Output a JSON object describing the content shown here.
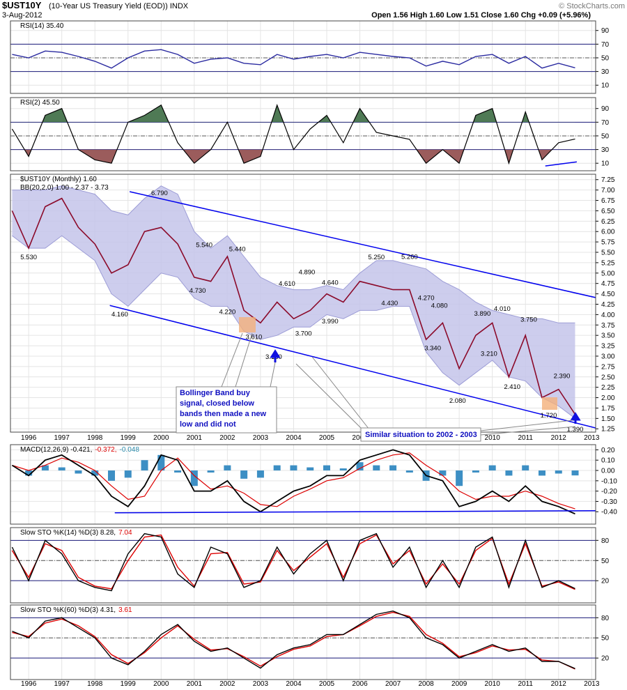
{
  "chart_data": {
    "type": "financial",
    "title": "$UST10Y",
    "subtitle": "(10-Year US Treasury Yield (EOD)) INDX",
    "date": "3-Aug-2012",
    "quote": "Open 1.56 High 1.60 Low 1.51 Close 1.60 Chg +0.09 (+5.96%)",
    "credit": "© StockCharts.com",
    "x": [
      1995.5,
      1996,
      1996.5,
      1997,
      1997.5,
      1998,
      1998.5,
      1999,
      1999.5,
      2000,
      2000.5,
      2001,
      2001.5,
      2002,
      2002.5,
      2003,
      2003.5,
      2004,
      2004.5,
      2005,
      2005.5,
      2006,
      2006.5,
      2007,
      2007.5,
      2008,
      2008.5,
      2009,
      2009.5,
      2010,
      2010.5,
      2011,
      2011.5,
      2012,
      2012.5
    ],
    "xlim": [
      1995.45,
      2013.12
    ],
    "xticks": [
      1996,
      1997,
      1998,
      1999,
      2000,
      2001,
      2002,
      2003,
      2004,
      2005,
      2006,
      2007,
      2008,
      2009,
      2010,
      2011,
      2012,
      2013
    ],
    "grid": true,
    "panels": [
      {
        "type": "line",
        "legend": [
          "RSI(14) 35.40"
        ],
        "legend_colors": [
          "#000000"
        ],
        "ylim": [
          -2,
          104
        ],
        "yticks": [
          90,
          70,
          50,
          30,
          10
        ],
        "ref_lines": [
          70,
          50,
          30
        ],
        "series": [
          {
            "color": "#2a2aa0",
            "values": [
              55,
              50,
              60,
              58,
              52,
              45,
              35,
              50,
              60,
              62,
              55,
              42,
              48,
              50,
              42,
              40,
              55,
              48,
              52,
              55,
              50,
              58,
              55,
              52,
              50,
              38,
              45,
              40,
              52,
              55,
              42,
              52,
              35,
              42,
              35.4
            ]
          }
        ]
      },
      {
        "type": "rsi-fill",
        "legend": [
          "RSI(2) 45.50"
        ],
        "legend_colors": [
          "#000000"
        ],
        "ylim": [
          -1,
          106
        ],
        "yticks": [
          90,
          70,
          50,
          30,
          10
        ],
        "ref_lines": [
          70,
          50,
          30
        ],
        "fills": [
          {
            "above": 70,
            "color": "#4f7a55"
          },
          {
            "below": 30,
            "color": "#9b5c5c"
          }
        ],
        "series": [
          {
            "color": "#000000",
            "values": [
              60,
              20,
              80,
              90,
              30,
              15,
              10,
              70,
              80,
              95,
              40,
              10,
              30,
              70,
              10,
              20,
              95,
              30,
              60,
              80,
              40,
              90,
              55,
              50,
              45,
              10,
              30,
              10,
              80,
              90,
              10,
              85,
              15,
              40,
              45.5
            ]
          }
        ],
        "trendlines": [
          {
            "x": [
              2011.6,
              2012.55
            ],
            "values": [
              6,
              12
            ],
            "color": "#0000ee"
          }
        ]
      },
      {
        "type": "price",
        "legend": [
          "$UST10Y (Monthly) 1.60"
        ],
        "legend_colors": [
          "#000000"
        ],
        "band_legend": "BB(20,2.0) 1.00 - 2.37 - 3.73",
        "ylim": [
          1.17,
          7.38
        ],
        "yticks": [
          7.25,
          {
            "value": 7,
            "label": "7.00"
          },
          6.75,
          {
            "value": 6.5,
            "label": "6.50"
          },
          6.25,
          {
            "value": 6,
            "label": "6.00"
          },
          5.75,
          {
            "value": 5.5,
            "label": "5.50"
          },
          5.25,
          {
            "value": 5,
            "label": "5.00"
          },
          4.75,
          {
            "value": 4.5,
            "label": "4.50"
          },
          4.25,
          {
            "value": 4,
            "label": "4.00"
          },
          3.75,
          {
            "value": 3.5,
            "label": "3.50"
          },
          3.25,
          {
            "value": 3,
            "label": "3.00"
          },
          2.75,
          {
            "value": 2.5,
            "label": "2.50"
          },
          2.25,
          {
            "value": 2,
            "label": "2.00"
          },
          1.75,
          {
            "value": 1.5,
            "label": "1.50"
          },
          1.25
        ],
        "series": [
          {
            "color": "#8b0a2a",
            "values": [
              6.5,
              5.6,
              6.6,
              6.8,
              6.1,
              5.7,
              5.0,
              5.2,
              6.0,
              6.1,
              5.7,
              4.9,
              4.8,
              5.4,
              4.1,
              3.8,
              4.3,
              3.9,
              4.1,
              4.5,
              4.3,
              4.8,
              4.7,
              4.6,
              4.6,
              3.4,
              3.8,
              2.7,
              3.5,
              3.8,
              2.5,
              3.5,
              2.0,
              2.2,
              1.6
            ]
          },
          {
            "color": "#9c9cd6",
            "values": [
              7.0,
              7.0,
              7.0,
              7.1,
              7.0,
              6.9,
              6.5,
              6.4,
              6.8,
              7.1,
              6.9,
              6.0,
              5.6,
              5.9,
              5.4,
              4.9,
              4.7,
              4.6,
              4.6,
              4.7,
              4.6,
              5.0,
              5.3,
              5.3,
              5.2,
              5.1,
              4.8,
              4.6,
              4.3,
              4.1,
              4.0,
              3.9,
              3.9,
              3.8,
              3.8
            ]
          },
          {
            "color": "#9c9cd6",
            "values": [
              5.9,
              5.6,
              5.6,
              5.9,
              5.6,
              5.3,
              4.5,
              4.2,
              4.6,
              5.0,
              4.9,
              4.4,
              4.2,
              4.2,
              3.6,
              3.4,
              3.5,
              3.7,
              3.7,
              4.0,
              3.9,
              4.1,
              4.1,
              4.2,
              4.2,
              3.1,
              2.6,
              2.3,
              2.6,
              2.9,
              2.5,
              2.4,
              2.0,
              1.8,
              1.5
            ]
          }
        ],
        "band_color": "#c4c4ea",
        "peaks": {
          "x": [
            1996.0,
            1999.95,
            1998.75,
            2001.3,
            2001.1,
            2002.3,
            2002.0,
            2002.8,
            2003.4,
            2003.8,
            2004.4,
            2005.1,
            2004.3,
            2005.1,
            2006.5,
            2007.5,
            2006.9,
            2008.0,
            2008.4,
            2008.2,
            2009.7,
            2010.3,
            2009.9,
            2008.95,
            2010.6,
            2011.1,
            2012.1,
            2011.7,
            2012.5
          ],
          "values": [
            5.53,
            6.79,
            4.16,
            5.54,
            4.73,
            5.44,
            4.22,
            3.61,
            3.13,
            4.61,
            4.89,
            4.64,
            3.7,
            3.99,
            5.25,
            5.26,
            4.43,
            4.27,
            4.08,
            3.34,
            3.89,
            4.01,
            3.21,
            2.08,
            2.41,
            3.75,
            2.39,
            1.72,
            1.39
          ],
          "value_labels": [
            "5.530",
            "6.790",
            "4.160",
            "5.540",
            "4.730",
            "5.440",
            "4.220",
            "3.610",
            "3.130",
            "4.610",
            "4.890",
            "4.640",
            "3.700",
            "3.990",
            "5.250",
            "5.260",
            "4.430",
            "4.270",
            "4.080",
            "3.340",
            "3.890",
            "4.010",
            "3.210",
            "2.080",
            "2.410",
            "3.750",
            "2.390",
            "1.720",
            "1.390"
          ]
        },
        "trendlines": [
          {
            "x": [
              1998.45,
              2013.12
            ],
            "values": [
              4.22,
              1.27
            ],
            "color": "#0000ee"
          },
          {
            "x": [
              1999.05,
              2013.12
            ],
            "values": [
              6.96,
              4.41
            ],
            "color": "#0000ee"
          }
        ]
      },
      {
        "type": "macd",
        "legend": [
          "MACD(12,26,9) -0.421,",
          "-0.372,",
          "-0.048"
        ],
        "legend_colors": [
          "#000000",
          "#dd0000",
          "#2a8aaa"
        ],
        "ylim": [
          -0.52,
          0.25
        ],
        "yticks": [
          {
            "value": 0.2,
            "label": "0.20"
          },
          {
            "value": 0.1,
            "label": "0.10"
          },
          {
            "value": 0,
            "label": "0.00"
          },
          {
            "value": -0.1,
            "label": "-0.10"
          },
          {
            "value": -0.2,
            "label": "-0.20"
          },
          {
            "value": -0.3,
            "label": "-0.30"
          },
          {
            "value": -0.4,
            "label": "-0.40"
          }
        ],
        "series": [
          {
            "color": "#000000",
            "values": [
              0.05,
              -0.05,
              0.1,
              0.15,
              0.05,
              -0.05,
              -0.25,
              -0.35,
              -0.15,
              0.15,
              0.1,
              -0.2,
              -0.2,
              -0.1,
              -0.3,
              -0.4,
              -0.3,
              -0.2,
              -0.15,
              -0.05,
              -0.05,
              0.1,
              0.15,
              0.2,
              0.15,
              -0.05,
              -0.1,
              -0.35,
              -0.3,
              -0.2,
              -0.3,
              -0.15,
              -0.3,
              -0.35,
              -0.421
            ]
          },
          {
            "color": "#dd0000",
            "values": [
              0.05,
              0,
              0.05,
              0.12,
              0.08,
              0,
              -0.15,
              -0.28,
              -0.25,
              0,
              0.12,
              -0.05,
              -0.18,
              -0.15,
              -0.22,
              -0.33,
              -0.35,
              -0.25,
              -0.18,
              -0.1,
              -0.07,
              0.02,
              0.1,
              0.15,
              0.17,
              0.05,
              -0.05,
              -0.2,
              -0.28,
              -0.25,
              -0.25,
              -0.2,
              -0.25,
              -0.32,
              -0.372
            ]
          },
          {
            "color": "#3d8fc4",
            "values": [
              0,
              -0.05,
              0.05,
              0.03,
              -0.03,
              -0.05,
              -0.1,
              -0.07,
              0.1,
              0.15,
              -0.02,
              -0.15,
              -0.02,
              0.05,
              -0.08,
              -0.07,
              0.05,
              0.05,
              0.03,
              0.05,
              0.02,
              0.08,
              0.05,
              0.05,
              -0.02,
              -0.1,
              -0.05,
              -0.15,
              -0.02,
              0.05,
              -0.05,
              0.05,
              -0.05,
              -0.03,
              -0.048
            ]
          }
        ],
        "trendlines": [
          {
            "x": [
              1998.6,
              2013.12
            ],
            "values": [
              -0.41,
              -0.39
            ],
            "color": "#0000ee"
          }
        ]
      },
      {
        "type": "line",
        "legend": [
          "Slow STO %K(14) %D(3) 8.28,",
          "7.04"
        ],
        "legend_colors": [
          "#000000",
          "#dd0000"
        ],
        "ylim": [
          -13,
          99
        ],
        "yticks": [
          80,
          50,
          20
        ],
        "ref_lines": [
          80,
          50,
          20
        ],
        "series": [
          {
            "color": "#dd0000",
            "values": [
              65,
              25,
              75,
              65,
              25,
              12,
              8,
              50,
              85,
              88,
              40,
              12,
              60,
              62,
              15,
              18,
              65,
              35,
              55,
              75,
              25,
              75,
              88,
              45,
              65,
              15,
              45,
              15,
              65,
              83,
              15,
              75,
              12,
              18,
              7.04
            ]
          },
          {
            "color": "#000000",
            "values": [
              70,
              20,
              80,
              60,
              20,
              10,
              5,
              60,
              90,
              85,
              30,
              10,
              70,
              60,
              10,
              20,
              70,
              30,
              60,
              80,
              20,
              80,
              90,
              40,
              70,
              10,
              50,
              10,
              70,
              85,
              10,
              80,
              10,
              20,
              8.28
            ]
          }
        ]
      },
      {
        "type": "line",
        "legend": [
          "Slow STO %K(60) %D(3) 4.31,",
          "3.61"
        ],
        "legend_colors": [
          "#000000",
          "#dd0000"
        ],
        "ylim": [
          -12,
          99
        ],
        "yticks": [
          80,
          50,
          20
        ],
        "ref_lines": [
          80,
          50,
          20
        ],
        "series": [
          {
            "color": "#dd0000",
            "values": [
              58,
              52,
              72,
              78,
              68,
              52,
              25,
              12,
              28,
              50,
              68,
              48,
              32,
              34,
              22,
              8,
              22,
              33,
              38,
              52,
              55,
              68,
              82,
              88,
              82,
              55,
              42,
              22,
              28,
              38,
              32,
              33,
              17,
              15,
              3.61
            ]
          },
          {
            "color": "#000000",
            "values": [
              60,
              50,
              75,
              80,
              65,
              50,
              20,
              10,
              30,
              55,
              70,
              45,
              30,
              35,
              20,
              5,
              25,
              35,
              40,
              55,
              55,
              70,
              85,
              90,
              80,
              50,
              40,
              20,
              30,
              40,
              30,
              35,
              15,
              15,
              4.31
            ]
          }
        ]
      }
    ],
    "callouts": [
      {
        "lines": [
          "Bollinger Band buy",
          "signal, closed below",
          "bands then made a new",
          "low and did not"
        ]
      },
      {
        "lines": [
          "Similar situation to 2002 - 2003"
        ]
      }
    ]
  }
}
